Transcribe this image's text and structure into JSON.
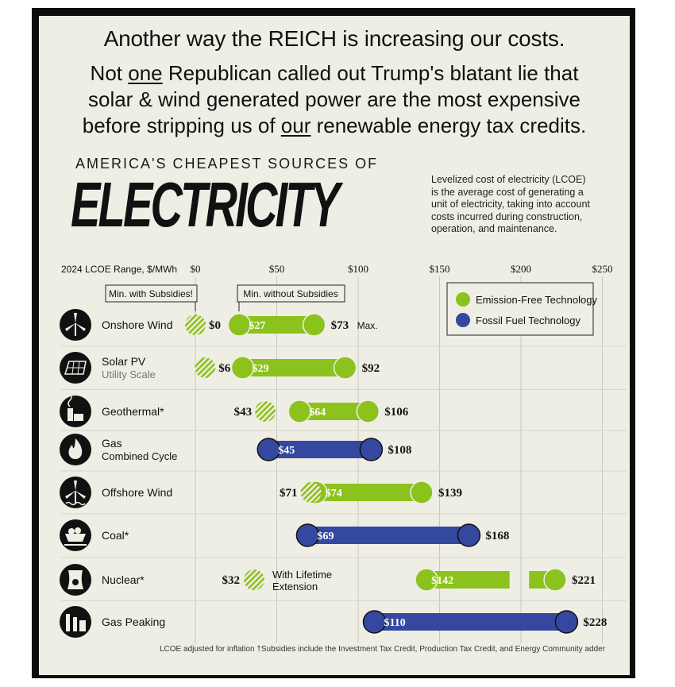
{
  "header": {
    "line1": "Another way the REICH is increasing our costs.",
    "line2_pre": "Not ",
    "line2_u": "one",
    "line2_post": " Republican called out Trump's blatant lie that",
    "line3": "solar & wind generated power are the most expensive",
    "line4_pre": "before stripping us of ",
    "line4_u": "our",
    "line4_post": " renewable energy tax credits."
  },
  "infographic": {
    "kicker": "AMERICA'S CHEAPEST SOURCES OF",
    "title": "ELECTRICITY",
    "description_lines": [
      "Levelized cost of electricity (LCOE)",
      "is the average cost of generating a",
      "unit of electricity, taking into account",
      "costs incurred during construction,",
      "operation, and maintenance."
    ],
    "callout_subsidies": "Min. with Subsidies",
    "callout_subsidies_mark": "!",
    "callout_no_subsidies": "Min. without Subsidies",
    "max_suffix": "Max.",
    "nuclear_extension": [
      "With Lifetime",
      "Extension"
    ],
    "footnote": "LCOE adjusted for inflation  †Subsidies include the Investment Tax Credit, Production Tax Credit, and Energy Community adder"
  },
  "colors": {
    "emission_free": "#8cc21c",
    "fossil": "#3548a0",
    "background": "#efeee5",
    "text": "#111111"
  },
  "chart_data": {
    "type": "bar",
    "subtype": "range",
    "xlabel": "2024 LCOE Range, $/MWh",
    "x_ticks": [
      "$0",
      "$50",
      "$100",
      "$150",
      "$200",
      "$250"
    ],
    "tick_values": [
      0,
      50,
      100,
      150,
      200,
      250
    ],
    "xlim": [
      0,
      250
    ],
    "grid": true,
    "legend_position": "top-right",
    "legend": [
      {
        "label": "Emission-Free Technology",
        "key": "emission_free"
      },
      {
        "label": "Fossil Fuel Technology",
        "key": "fossil"
      }
    ],
    "series": [
      {
        "name": "Onshore Wind",
        "subtitle": "",
        "tech": "emission_free",
        "icon": "wind-turbine-icon",
        "min_with_subsidies": 0,
        "min_without_subsidies": 27,
        "max": 73,
        "min_label": "$27",
        "max_label": "$73",
        "sub_label": "$0"
      },
      {
        "name": "Solar PV",
        "subtitle": "Utility Scale",
        "tech": "emission_free",
        "icon": "solar-panel-icon",
        "min_with_subsidies": 6,
        "min_without_subsidies": 29,
        "max": 92,
        "min_label": "$29",
        "max_label": "$92",
        "sub_label": "$6"
      },
      {
        "name": "Geothermal*",
        "subtitle": "",
        "tech": "emission_free",
        "icon": "geothermal-plant-icon",
        "min_with_subsidies": 43,
        "min_without_subsidies": 64,
        "max": 106,
        "min_label": "$64",
        "max_label": "$106",
        "sub_label": "$43"
      },
      {
        "name": "Gas",
        "subtitle": "Combined Cycle",
        "tech": "fossil",
        "icon": "flame-icon",
        "min_with_subsidies": null,
        "min_without_subsidies": 45,
        "max": 108,
        "min_label": "$45",
        "max_label": "$108",
        "sub_label": ""
      },
      {
        "name": "Offshore Wind",
        "subtitle": "",
        "tech": "emission_free",
        "icon": "offshore-turbine-icon",
        "min_with_subsidies": 71,
        "min_without_subsidies": 74,
        "max": 139,
        "min_label": "$74",
        "max_label": "$139",
        "sub_label": "$71"
      },
      {
        "name": "Coal*",
        "subtitle": "",
        "tech": "fossil",
        "icon": "coal-cart-icon",
        "min_with_subsidies": null,
        "min_without_subsidies": 69,
        "max": 168,
        "min_label": "$69",
        "max_label": "$168",
        "sub_label": ""
      },
      {
        "name": "Nuclear*",
        "subtitle": "",
        "tech": "emission_free",
        "icon": "nuclear-icon",
        "min_with_subsidies": 32,
        "min_without_subsidies": 142,
        "max": 221,
        "min_label": "$142",
        "max_label": "$221",
        "sub_label": "$32",
        "range_break": true
      },
      {
        "name": "Gas Peaking",
        "subtitle": "",
        "tech": "fossil",
        "icon": "factory-icon",
        "min_with_subsidies": null,
        "min_without_subsidies": 110,
        "max": 228,
        "min_label": "$110",
        "max_label": "$228",
        "sub_label": ""
      }
    ]
  }
}
